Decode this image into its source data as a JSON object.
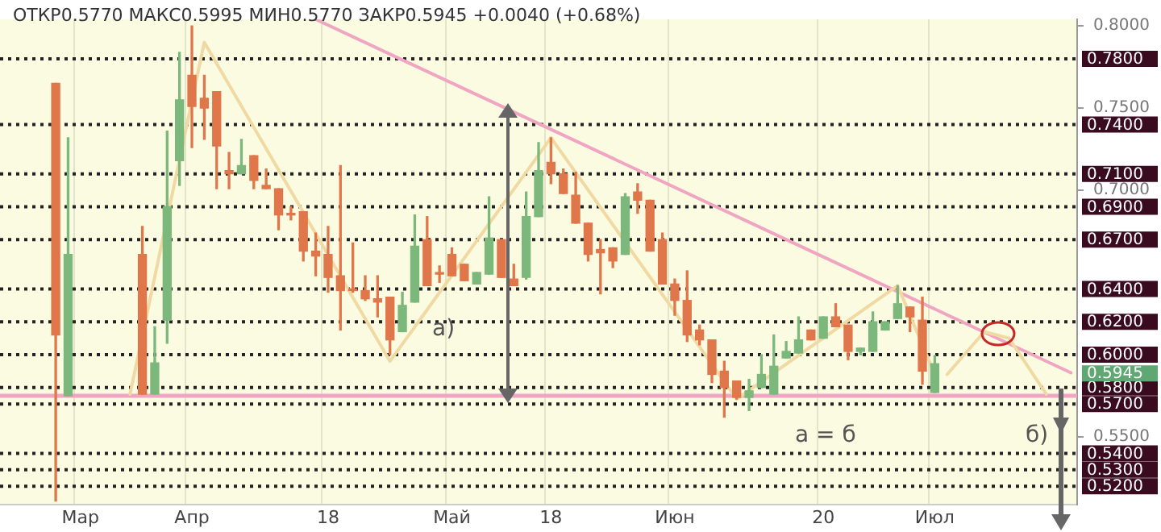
{
  "chart_data": {
    "type": "candlestick",
    "title": "ОТКР0.5770 МАКС0.5995 МИН0.5770 ЗАКР0.5945 +0.0040 (+0.68%)",
    "categories": [
      null,
      null,
      null,
      null,
      null,
      null,
      "Мар",
      null,
      null,
      null,
      null,
      null,
      null,
      null,
      null,
      "Апр",
      null,
      null,
      null,
      null,
      null,
      null,
      null,
      null,
      null,
      null,
      "18",
      null,
      null,
      null,
      null,
      null,
      null,
      null,
      null,
      null,
      "Май",
      null,
      null,
      null,
      null,
      null,
      null,
      null,
      "18",
      null,
      null,
      null,
      null,
      null,
      null,
      null,
      null,
      null,
      "Июн",
      null,
      null,
      null,
      null,
      null,
      null,
      null,
      null,
      null,
      null,
      null,
      "20",
      null,
      null,
      null,
      null,
      null,
      null,
      null,
      null,
      "Июл",
      null,
      null,
      null,
      null,
      null,
      null,
      null,
      null,
      null,
      null,
      null
    ],
    "ohlc": [
      null,
      null,
      null,
      null,
      [
        0.765,
        0.765,
        0.511,
        0.612
      ],
      [
        0.575,
        0.732,
        0.575,
        0.661
      ],
      null,
      null,
      null,
      null,
      null,
      [
        0.661,
        0.678,
        0.576,
        0.576
      ],
      [
        0.576,
        0.617,
        0.576,
        0.595
      ],
      [
        0.621,
        0.736,
        0.607,
        0.69
      ],
      [
        0.718,
        0.784,
        0.703,
        0.755
      ],
      [
        0.77,
        0.8,
        0.726,
        0.751
      ],
      [
        0.756,
        0.77,
        0.731,
        0.75
      ],
      [
        0.76,
        0.76,
        0.701,
        0.727
      ],
      [
        0.712,
        0.723,
        0.701,
        0.71
      ],
      [
        0.71,
        0.731,
        0.71,
        0.715
      ],
      [
        0.721,
        0.721,
        0.701,
        0.706
      ],
      [
        0.703,
        0.713,
        0.701,
        0.701
      ],
      [
        0.701,
        0.701,
        0.676,
        0.685
      ],
      [
        0.685,
        0.69,
        0.682,
        0.685
      ],
      [
        0.687,
        0.687,
        0.657,
        0.663
      ],
      [
        0.663,
        0.674,
        0.648,
        0.66
      ],
      [
        0.661,
        0.678,
        0.638,
        0.647
      ],
      [
        0.648,
        0.715,
        0.615,
        0.639
      ],
      [
        0.64,
        0.668,
        0.638,
        0.639
      ],
      [
        0.639,
        0.648,
        0.633,
        0.634
      ],
      [
        0.634,
        0.648,
        0.623,
        0.632
      ],
      [
        0.635,
        0.635,
        0.6,
        0.609
      ],
      [
        0.614,
        0.638,
        0.614,
        0.63
      ],
      [
        0.632,
        0.685,
        0.632,
        0.666
      ],
      [
        0.67,
        0.684,
        0.642,
        0.642
      ],
      [
        0.649,
        0.654,
        0.644,
        0.649
      ],
      [
        0.661,
        0.665,
        0.648,
        0.648
      ],
      [
        0.655,
        0.655,
        0.645,
        0.645
      ],
      [
        0.643,
        0.65,
        0.643,
        0.65
      ],
      [
        0.649,
        0.696,
        0.649,
        0.671
      ],
      [
        0.67,
        0.67,
        0.647,
        0.647
      ],
      [
        0.646,
        0.655,
        0.642,
        0.642
      ],
      [
        0.647,
        0.699,
        0.646,
        0.684
      ],
      [
        0.684,
        0.729,
        0.684,
        0.712
      ],
      [
        0.717,
        0.732,
        0.704,
        0.71
      ],
      [
        0.71,
        0.713,
        0.698,
        0.698
      ],
      [
        0.697,
        0.711,
        0.68,
        0.68
      ],
      [
        0.68,
        0.68,
        0.657,
        0.661
      ],
      [
        0.664,
        0.67,
        0.637,
        0.662
      ],
      [
        0.665,
        0.665,
        0.653,
        0.657
      ],
      [
        0.661,
        0.698,
        0.661,
        0.696
      ],
      [
        0.699,
        0.704,
        0.686,
        0.694
      ],
      [
        0.694,
        0.694,
        0.663,
        0.663
      ],
      [
        0.67,
        0.674,
        0.643,
        0.643
      ],
      [
        0.643,
        0.646,
        0.624,
        0.633
      ],
      [
        0.633,
        0.651,
        0.608,
        0.612
      ],
      [
        0.615,
        0.618,
        0.606,
        0.609
      ],
      [
        0.609,
        0.609,
        0.583,
        0.588
      ],
      [
        0.59,
        0.596,
        0.562,
        0.58
      ],
      [
        0.584,
        0.584,
        0.573,
        0.574
      ],
      [
        0.574,
        0.585,
        0.566,
        0.578
      ],
      [
        0.58,
        0.6,
        0.58,
        0.588
      ],
      [
        0.576,
        0.612,
        0.576,
        0.593
      ],
      [
        0.598,
        0.608,
        0.598,
        0.602
      ],
      [
        0.601,
        0.623,
        0.601,
        0.609
      ],
      [
        0.615,
        0.615,
        0.609,
        0.609
      ],
      [
        0.61,
        0.623,
        0.61,
        0.623
      ],
      [
        0.623,
        0.631,
        0.617,
        0.617
      ],
      [
        0.618,
        0.618,
        0.597,
        0.602
      ],
      [
        0.602,
        0.604,
        0.6,
        0.604
      ],
      [
        0.602,
        0.626,
        0.602,
        0.62
      ],
      [
        0.615,
        0.62,
        0.615,
        0.62
      ],
      [
        0.622,
        0.642,
        0.622,
        0.631
      ],
      [
        0.629,
        0.629,
        0.614,
        0.623
      ],
      [
        0.621,
        0.635,
        0.582,
        0.59
      ],
      [
        0.577,
        0.5995,
        0.577,
        0.5945
      ],
      null,
      null,
      null,
      null,
      null,
      null,
      null,
      null,
      null,
      null,
      null
    ],
    "colors": [
      null,
      null,
      null,
      null,
      "#e0774a",
      "#7cb87c",
      null,
      null,
      null,
      null,
      null,
      "#e0774a",
      "#7cb87c",
      "#7cb87c",
      "#7cb87c",
      "#e0774a",
      "#e0774a",
      "#e0774a",
      "#e0774a",
      "#7cb87c",
      "#e0774a",
      "#e0774a",
      "#e0774a",
      "#e0774a",
      "#e0774a",
      "#e0774a",
      "#e0774a",
      "#e0774a",
      "#e0774a",
      "#e0774a",
      "#e0774a",
      "#e0774a",
      "#7cb87c",
      "#7cb87c",
      "#e0774a",
      "#e0774a",
      "#e0774a",
      "#e0774a",
      "#7cb87c",
      "#7cb87c",
      "#e0774a",
      "#e0774a",
      "#7cb87c",
      "#7cb87c",
      "#e0774a",
      "#e0774a",
      "#e0774a",
      "#e0774a",
      "#e0774a",
      "#e0774a",
      "#7cb87c",
      "#e0774a",
      "#e0774a",
      "#e0774a",
      "#e0774a",
      "#e0774a",
      "#e0774a",
      "#e0774a",
      "#e0774a",
      "#e0774a",
      "#7cb87c",
      "#7cb87c",
      "#7cb87c",
      "#7cb87c",
      "#7cb87c",
      "#e0774a",
      "#7cb87c",
      "#e0774a",
      "#e0774a",
      "#7cb87c",
      "#7cb87c",
      "#7cb87c",
      "#7cb87c",
      "#e0774a",
      "#e0774a",
      "#7cb87c",
      null,
      null,
      null,
      null,
      null,
      null,
      null,
      null,
      null,
      null,
      null
    ],
    "series": [
      {
        "type": "line",
        "color": "#f1d9a3",
        "values": [
          null,
          null,
          null,
          null,
          null,
          null,
          null,
          null,
          null,
          null,
          0.576,
          null,
          null,
          null,
          null,
          null,
          0.79,
          null,
          null,
          null,
          null,
          null,
          null,
          null,
          null,
          null,
          null,
          null,
          null,
          null,
          null,
          0.596,
          null,
          null,
          null,
          null,
          null,
          null,
          null,
          null,
          null,
          null,
          null,
          null,
          0.732,
          null,
          null,
          null,
          null,
          null,
          null,
          null,
          null,
          null,
          null,
          null,
          null,
          null,
          null,
          0.573,
          null,
          null,
          null,
          null,
          null,
          null,
          null,
          null,
          null,
          null,
          null,
          null,
          0.642,
          null,
          null,
          0.588,
          null,
          null,
          null,
          null,
          null,
          null,
          null,
          null,
          null,
          null,
          null
        ]
      },
      {
        "type": "line",
        "color": "#f1d9a3",
        "values": [
          null,
          null,
          null,
          null,
          null,
          null,
          null,
          null,
          null,
          null,
          null,
          null,
          null,
          null,
          null,
          null,
          null,
          null,
          null,
          null,
          null,
          null,
          null,
          null,
          null,
          null,
          null,
          null,
          null,
          null,
          null,
          null,
          null,
          null,
          null,
          null,
          null,
          null,
          null,
          null,
          null,
          null,
          null,
          null,
          null,
          null,
          null,
          null,
          null,
          null,
          null,
          null,
          null,
          null,
          null,
          null,
          null,
          null,
          null,
          null,
          null,
          null,
          null,
          null,
          null,
          null,
          null,
          null,
          null,
          null,
          null,
          null,
          null,
          null,
          null,
          null,
          0.588,
          null,
          null,
          0.614,
          null,
          0.61,
          null,
          null,
          0.576,
          null,
          null
        ]
      },
      {
        "type": "line",
        "color": "#f0a6c2",
        "values": [
          null,
          null,
          null,
          null,
          null,
          null,
          null,
          null,
          null,
          null,
          null,
          null,
          null,
          null,
          null,
          null,
          null,
          null,
          null,
          null,
          null,
          null,
          null,
          null,
          null,
          0.804,
          null,
          null,
          null,
          null,
          null,
          null,
          null,
          null,
          null,
          null,
          null,
          null,
          null,
          null,
          null,
          null,
          null,
          null,
          null,
          null,
          null,
          null,
          null,
          null,
          null,
          null,
          null,
          null,
          null,
          null,
          null,
          null,
          null,
          null,
          null,
          null,
          null,
          null,
          null,
          null,
          null,
          null,
          null,
          null,
          null,
          null,
          null,
          null,
          null,
          null,
          null,
          null,
          null,
          null,
          null,
          null,
          null,
          null,
          null,
          null,
          0.589
        ]
      }
    ],
    "ylim": [
      0.509,
      0.804
    ],
    "yticks": [
      {
        "value": 0.8,
        "label": "0.8000"
      },
      {
        "value": 0.75,
        "label": "0.7500"
      },
      {
        "value": 0.7,
        "label": "0.7000"
      },
      {
        "value": 0.55,
        "label": "0.5500"
      }
    ],
    "ref_lines": [
      {
        "axis": "y",
        "value": 0.78,
        "label": "0.7800",
        "color": "#222222",
        "line_style": "dotted"
      },
      {
        "axis": "y",
        "value": 0.74,
        "label": "0.7400",
        "color": "#222222",
        "line_style": "dotted"
      },
      {
        "axis": "y",
        "value": 0.71,
        "label": "0.7100",
        "color": "#222222",
        "line_style": "dotted"
      },
      {
        "axis": "y",
        "value": 0.69,
        "label": "0.6900",
        "color": "#222222",
        "line_style": "dotted"
      },
      {
        "axis": "y",
        "value": 0.67,
        "label": "0.6700",
        "color": "#222222",
        "line_style": "dotted"
      },
      {
        "axis": "y",
        "value": 0.64,
        "label": "0.6400",
        "color": "#222222",
        "line_style": "dotted"
      },
      {
        "axis": "y",
        "value": 0.62,
        "label": "0.6200",
        "color": "#222222",
        "line_style": "dotted"
      },
      {
        "axis": "y",
        "value": 0.6,
        "label": "0.6000",
        "color": "#222222",
        "line_style": "dotted"
      },
      {
        "axis": "y",
        "value": 0.58,
        "label": "0.5800",
        "color": "#222222",
        "line_style": "dotted"
      },
      {
        "axis": "y",
        "value": 0.57,
        "label": "0.5700",
        "color": "#222222",
        "line_style": "dotted"
      },
      {
        "axis": "y",
        "value": 0.54,
        "label": "0.5400",
        "color": "#222222",
        "line_style": "dotted"
      },
      {
        "axis": "y",
        "value": 0.53,
        "label": "0.5300",
        "color": "#222222",
        "line_style": "dotted"
      },
      {
        "axis": "y",
        "value": 0.52,
        "label": "0.5200",
        "color": "#222222",
        "line_style": "dotted"
      },
      {
        "axis": "y",
        "value": 0.575,
        "color": "#f0a6c2",
        "line_style": "solid"
      }
    ],
    "annotations": [
      "а)",
      "б)",
      "а = б",
      "0.5945"
    ],
    "grid": "x",
    "marker": "none",
    "line_style": "solid"
  }
}
